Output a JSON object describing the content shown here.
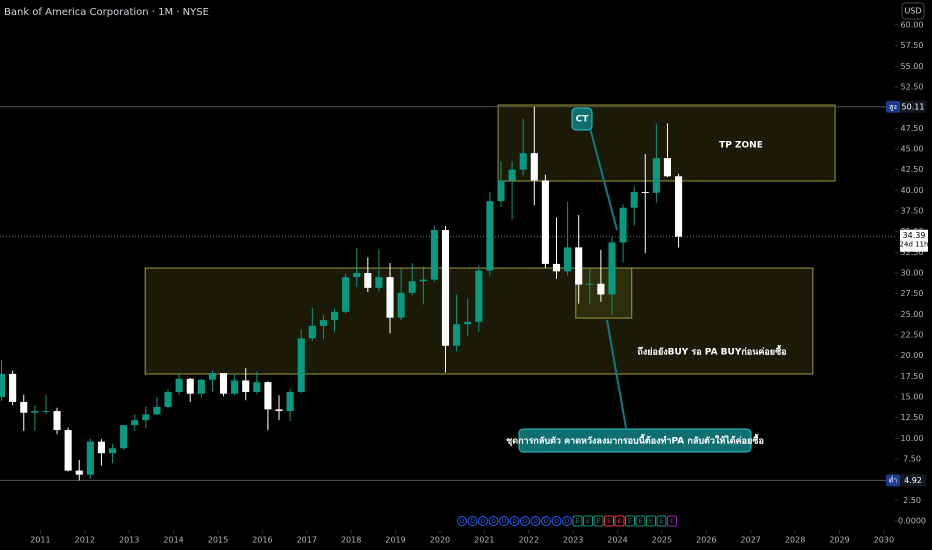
{
  "chart_data": {
    "type": "candlestick",
    "title": "Bank of America Corporation · 1M · NYSE",
    "currency": "USD",
    "up_color": "#089981",
    "down_color": "#ffffff",
    "xlim": [
      2010.09,
      2030.25
    ],
    "ylim": [
      0,
      60
    ],
    "xticks": [
      2011,
      2012,
      2013,
      2014,
      2015,
      2016,
      2017,
      2018,
      2019,
      2020,
      2021,
      2022,
      2023,
      2024,
      2025,
      2026,
      2027,
      2028,
      2029,
      2030
    ],
    "yticks": [
      {
        "value": 0,
        "label": "0.0000"
      },
      {
        "value": 2.5,
        "label": "2.50"
      },
      {
        "value": 5,
        "label": "5.00"
      },
      {
        "value": 7.5,
        "label": "7.50"
      },
      {
        "value": 10,
        "label": "10.00"
      },
      {
        "value": 12.5,
        "label": "12.50"
      },
      {
        "value": 15,
        "label": "15.00"
      },
      {
        "value": 17.5,
        "label": "17.50"
      },
      {
        "value": 20,
        "label": "20.00"
      },
      {
        "value": 22.5,
        "label": "22.50"
      },
      {
        "value": 25,
        "label": "25.00"
      },
      {
        "value": 27.5,
        "label": "27.50"
      },
      {
        "value": 30,
        "label": "30.00"
      },
      {
        "value": 32.5,
        "label": "32.50"
      },
      {
        "value": 35,
        "label": "35.00"
      },
      {
        "value": 37.5,
        "label": "37.50"
      },
      {
        "value": 40,
        "label": "40.00"
      },
      {
        "value": 42.5,
        "label": "42.50"
      },
      {
        "value": 45,
        "label": "45.00"
      },
      {
        "value": 47.5,
        "label": "47.50"
      },
      {
        "value": 50,
        "label": "50.00"
      },
      {
        "value": 52.5,
        "label": "52.50"
      },
      {
        "value": 55,
        "label": "55.00"
      },
      {
        "value": 57.5,
        "label": "57.50"
      },
      {
        "value": 60,
        "label": "60.00"
      }
    ],
    "x": [
      2010,
      2010.25,
      2010.5,
      2010.75,
      2011,
      2011.25,
      2011.5,
      2011.75,
      2012,
      2012.25,
      2012.5,
      2012.75,
      2013,
      2013.25,
      2013.5,
      2013.75,
      2014,
      2014.25,
      2014.5,
      2014.75,
      2015,
      2015.25,
      2015.5,
      2015.75,
      2016,
      2016.25,
      2016.5,
      2016.75,
      2017,
      2017.25,
      2017.5,
      2017.75,
      2018,
      2018.25,
      2018.5,
      2018.75,
      2019,
      2019.25,
      2019.5,
      2019.75,
      2020,
      2020.25,
      2020.5,
      2020.75,
      2021,
      2021.25,
      2021.5,
      2021.75,
      2022,
      2022.25,
      2022.5,
      2022.75,
      2023,
      2023.25,
      2023.5,
      2023.75,
      2024,
      2024.25,
      2024.5,
      2024.75,
      2025,
      2025.25
    ],
    "open": [
      15,
      17.8,
      14.4,
      13.1,
      13.3,
      13.3,
      11,
      6.1,
      5.6,
      9.6,
      8.2,
      8.8,
      11.6,
      12.2,
      12.9,
      13.8,
      15.6,
      17.2,
      15.4,
      17.1,
      17.9,
      15.4,
      17,
      15.6,
      16.8,
      13.5,
      13.3,
      15.6,
      22.1,
      23.6,
      24.3,
      25.3,
      29.5,
      30,
      28.2,
      29.5,
      24.6,
      27.6,
      29,
      29.2,
      35.2,
      21.2,
      23.8,
      24.1,
      30.3,
      38.7,
      41.2,
      42.5,
      44.5,
      41.2,
      31.1,
      30.2,
      33.1,
      28.6,
      28.7,
      27.4,
      33.7,
      37.9,
      39.8,
      39.7,
      43.9,
      41.7
    ],
    "high": [
      19.5,
      18.2,
      15.3,
      14,
      15.3,
      13.7,
      11.3,
      7.4,
      10,
      9.9,
      9.3,
      11.6,
      12.9,
      13.9,
      15,
      15.9,
      17.9,
      17.3,
      17.2,
      18.2,
      17.9,
      17.8,
      18.5,
      18.1,
      16.9,
      15.2,
      16,
      23.2,
      25.8,
      24.9,
      25.7,
      29.9,
      33.05,
      31.9,
      32.9,
      31.2,
      30.5,
      31.2,
      30.8,
      35.7,
      35.7,
      27.4,
      26.9,
      30.9,
      39.8,
      43.5,
      43.5,
      48.7,
      50.11,
      41.9,
      36.7,
      38.6,
      37,
      30.5,
      32.8,
      34.4,
      38.3,
      40.5,
      44.4,
      48.1,
      48.1,
      42
    ],
    "low": [
      14.5,
      14,
      10.9,
      10.9,
      12.9,
      10.5,
      6,
      4.92,
      5.1,
      6.7,
      7,
      8.6,
      10.9,
      11.2,
      12.8,
      13.6,
      15.3,
      14.4,
      14.9,
      15.7,
      15.1,
      15.2,
      14.6,
      15.4,
      10.99,
      12.2,
      12.1,
      15.4,
      21.8,
      22,
      22.8,
      25.1,
      28.3,
      27.7,
      27.8,
      22.7,
      24.3,
      27.3,
      26.2,
      28.9,
      17.95,
      20.5,
      22.4,
      22.9,
      29.7,
      38,
      36.5,
      41.8,
      38.2,
      30.6,
      29.3,
      29.7,
      26.3,
      26.3,
      26.5,
      24.96,
      31.3,
      35.7,
      32.4,
      38.5,
      41.6,
      33.1
    ],
    "close": [
      17.8,
      14.4,
      13.1,
      13.3,
      13.3,
      11,
      6.1,
      5.6,
      9.6,
      8.2,
      8.8,
      11.6,
      12.2,
      12.9,
      13.8,
      15.6,
      17.2,
      15.4,
      17.1,
      17.9,
      15.4,
      17,
      15.6,
      16.8,
      13.5,
      13.3,
      15.6,
      22.1,
      23.6,
      24.3,
      25.3,
      29.5,
      30,
      28.2,
      29.5,
      24.6,
      27.6,
      29,
      29.2,
      35.2,
      21.2,
      23.8,
      24.1,
      30.3,
      38.7,
      41.2,
      42.5,
      44.5,
      41.2,
      31.1,
      30.2,
      33.1,
      28.6,
      28.7,
      27.4,
      33.7,
      37.9,
      39.8,
      39.7,
      43.9,
      41.7,
      34.39
    ],
    "high_marker": {
      "tag": "สูง",
      "value": 50.11
    },
    "low_marker": {
      "tag": "ต่ำ",
      "value": 4.92
    },
    "last_price": {
      "value": 34.39,
      "countdown": "24d 11h"
    },
    "zones": [
      {
        "label": "TP ZONE",
        "x0": 2021.31,
        "x1": 2028.9,
        "y0": 41.13,
        "y1": 50.32
      },
      {
        "label": "ถึงย่อยังBUY รอ PA BUYก่อนค่อยซื้อ",
        "x0": 2013.36,
        "x1": 2028.4,
        "y0": 17.78,
        "y1": 30.6
      },
      {
        "x0": 2023.06,
        "x1": 2024.32,
        "y0": 24.55,
        "y1": 30.6
      }
    ],
    "callouts": [
      "CT",
      "ชุดการกลับตัว คาดหวังลงมากรอบนี้ต้องทำPA กลับตัวให้ได้ค่อยซื้อ"
    ],
    "events": [
      {
        "label": "D",
        "color": "#2962ff"
      },
      {
        "label": "D",
        "color": "#2962ff"
      },
      {
        "label": "D",
        "color": "#2962ff"
      },
      {
        "label": "D",
        "color": "#2962ff"
      },
      {
        "label": "D",
        "color": "#2962ff"
      },
      {
        "label": "D",
        "color": "#2962ff"
      },
      {
        "label": "D",
        "color": "#2962ff"
      },
      {
        "label": "D",
        "color": "#2962ff"
      },
      {
        "label": "D",
        "color": "#2962ff"
      },
      {
        "label": "D",
        "color": "#2962ff"
      },
      {
        "label": "D",
        "color": "#2962ff"
      },
      {
        "label": "E",
        "color": "#089981"
      },
      {
        "label": "E",
        "color": "#089981"
      },
      {
        "label": "E",
        "color": "#089981"
      },
      {
        "label": "E",
        "color": "#f23645"
      },
      {
        "label": "E",
        "color": "#f23645"
      },
      {
        "label": "E",
        "color": "#089981"
      },
      {
        "label": "E",
        "color": "#089981"
      },
      {
        "label": "E",
        "color": "#089981"
      },
      {
        "label": "E",
        "color": "#089981"
      },
      {
        "label": "E",
        "color": "#9c27b0"
      }
    ]
  }
}
